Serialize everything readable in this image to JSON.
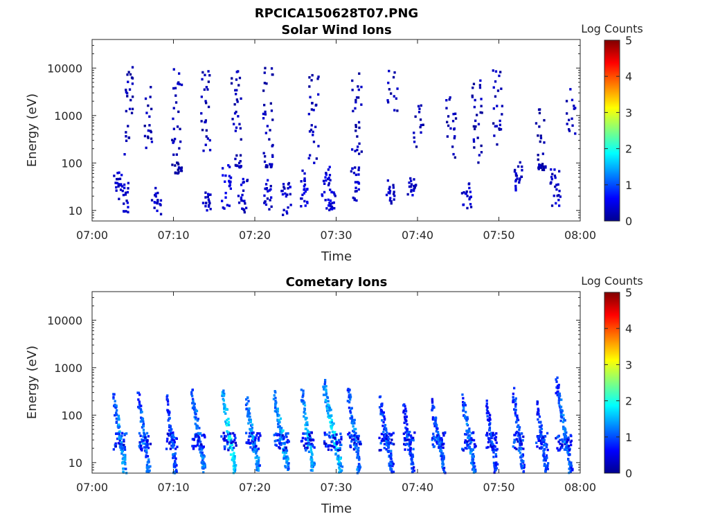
{
  "figure_title": "RPCICA150628T07.PNG",
  "chart_data": [
    {
      "type": "heatmap",
      "title": "Solar Wind Ions",
      "xlabel": "Time",
      "ylabel": "Energy (eV)",
      "x_ticks": [
        "07:00",
        "07:10",
        "07:20",
        "07:30",
        "07:40",
        "07:50",
        "08:00"
      ],
      "xlim_minutes": [
        0,
        60
      ],
      "y_scale": "log",
      "y_ticks": [
        "10",
        "100",
        "1000",
        "10000"
      ],
      "ylim": [
        6,
        40000
      ],
      "colorbar": {
        "label": "Log Counts",
        "min": 0,
        "max": 5,
        "ticks": [
          "0",
          "1",
          "2",
          "3",
          "4",
          "5"
        ],
        "colormap": "jet"
      },
      "grid": false,
      "columns": [
        {
          "t": 3.0,
          "emin": 25,
          "emax": 65,
          "c": 0.2
        },
        {
          "t": 3.7,
          "emin": 8,
          "emax": 40,
          "c": 0.2
        },
        {
          "t": 4.4,
          "emin": 150,
          "emax": 11000,
          "c": 0.1
        },
        {
          "t": 6.9,
          "emin": 200,
          "emax": 4000,
          "c": 0.1
        },
        {
          "t": 7.8,
          "emin": 8,
          "emax": 30,
          "c": 0.2
        },
        {
          "t": 10.3,
          "emin": 60,
          "emax": 12000,
          "c": 0.1
        },
        {
          "t": 13.8,
          "emin": 150,
          "emax": 12000,
          "c": 0.1
        },
        {
          "t": 14.0,
          "emin": 8,
          "emax": 25,
          "c": 0.2
        },
        {
          "t": 16.3,
          "emin": 10,
          "emax": 90,
          "c": 0.3
        },
        {
          "t": 17.6,
          "emin": 80,
          "emax": 9000,
          "c": 0.1
        },
        {
          "t": 18.4,
          "emin": 8,
          "emax": 50,
          "c": 0.2
        },
        {
          "t": 21.3,
          "emin": 10,
          "emax": 45,
          "c": 0.2
        },
        {
          "t": 21.5,
          "emin": 80,
          "emax": 10000,
          "c": 0.1
        },
        {
          "t": 23.7,
          "emin": 7,
          "emax": 40,
          "c": 0.2
        },
        {
          "t": 25.8,
          "emin": 12,
          "emax": 85,
          "c": 0.3
        },
        {
          "t": 27.1,
          "emin": 100,
          "emax": 9000,
          "c": 0.1
        },
        {
          "t": 28.6,
          "emin": 10,
          "emax": 90,
          "c": 0.3
        },
        {
          "t": 29.2,
          "emin": 8,
          "emax": 25,
          "c": 0.3
        },
        {
          "t": 32.1,
          "emin": 15,
          "emax": 85,
          "c": 0.2
        },
        {
          "t": 32.4,
          "emin": 150,
          "emax": 10000,
          "c": 0.1
        },
        {
          "t": 36.4,
          "emin": 12,
          "emax": 45,
          "c": 0.2
        },
        {
          "t": 36.8,
          "emin": 1200,
          "emax": 10000,
          "c": 0.1
        },
        {
          "t": 39.1,
          "emin": 20,
          "emax": 60,
          "c": 0.2
        },
        {
          "t": 40.0,
          "emin": 200,
          "emax": 2000,
          "c": 0.1
        },
        {
          "t": 44.0,
          "emin": 120,
          "emax": 3000,
          "c": 0.1
        },
        {
          "t": 45.9,
          "emin": 10,
          "emax": 40,
          "c": 0.2
        },
        {
          "t": 47.2,
          "emin": 100,
          "emax": 9000,
          "c": 0.1
        },
        {
          "t": 49.7,
          "emin": 200,
          "emax": 9000,
          "c": 0.1
        },
        {
          "t": 52.1,
          "emin": 25,
          "emax": 120,
          "c": 0.2
        },
        {
          "t": 55.0,
          "emin": 70,
          "emax": 1500,
          "c": 0.1
        },
        {
          "t": 56.8,
          "emin": 10,
          "emax": 80,
          "c": 0.2
        },
        {
          "t": 58.8,
          "emin": 400,
          "emax": 4000,
          "c": 0.1
        }
      ]
    },
    {
      "type": "heatmap",
      "title": "Cometary Ions",
      "xlabel": "Time",
      "ylabel": "Energy (eV)",
      "x_ticks": [
        "07:00",
        "07:10",
        "07:20",
        "07:30",
        "07:40",
        "07:50",
        "08:00"
      ],
      "xlim_minutes": [
        0,
        60
      ],
      "y_scale": "log",
      "y_ticks": [
        "10",
        "100",
        "1000",
        "10000"
      ],
      "ylim": [
        6,
        40000
      ],
      "colorbar": {
        "label": "Log Counts",
        "min": 0,
        "max": 5,
        "ticks": [
          "0",
          "1",
          "2",
          "3",
          "4",
          "5"
        ],
        "colormap": "jet"
      },
      "grid": false,
      "bursts": [
        {
          "t": 2.6,
          "dur": 1.4,
          "emax": 320,
          "peak": 1.7
        },
        {
          "t": 5.6,
          "dur": 1.3,
          "emax": 300,
          "peak": 1.5
        },
        {
          "t": 9.1,
          "dur": 1.1,
          "emax": 260,
          "peak": 1.4
        },
        {
          "t": 12.2,
          "dur": 1.5,
          "emax": 370,
          "peak": 1.6
        },
        {
          "t": 15.9,
          "dur": 1.6,
          "emax": 420,
          "peak": 2.2
        },
        {
          "t": 18.9,
          "dur": 1.5,
          "emax": 280,
          "peak": 1.8
        },
        {
          "t": 22.3,
          "dur": 1.7,
          "emax": 320,
          "peak": 1.8
        },
        {
          "t": 25.7,
          "dur": 1.4,
          "emax": 380,
          "peak": 1.9
        },
        {
          "t": 28.4,
          "dur": 2.1,
          "emax": 550,
          "peak": 2.0
        },
        {
          "t": 31.4,
          "dur": 1.4,
          "emax": 420,
          "peak": 1.6
        },
        {
          "t": 35.3,
          "dur": 1.5,
          "emax": 250,
          "peak": 1.4
        },
        {
          "t": 38.2,
          "dur": 1.2,
          "emax": 200,
          "peak": 1.3
        },
        {
          "t": 41.7,
          "dur": 1.5,
          "emax": 240,
          "peak": 1.4
        },
        {
          "t": 45.5,
          "dur": 1.4,
          "emax": 270,
          "peak": 1.6
        },
        {
          "t": 48.4,
          "dur": 1.2,
          "emax": 220,
          "peak": 1.3
        },
        {
          "t": 51.7,
          "dur": 1.2,
          "emax": 380,
          "peak": 1.4
        },
        {
          "t": 54.6,
          "dur": 1.2,
          "emax": 200,
          "peak": 1.3
        },
        {
          "t": 57.0,
          "dur": 1.8,
          "emax": 620,
          "peak": 1.5
        }
      ]
    }
  ]
}
